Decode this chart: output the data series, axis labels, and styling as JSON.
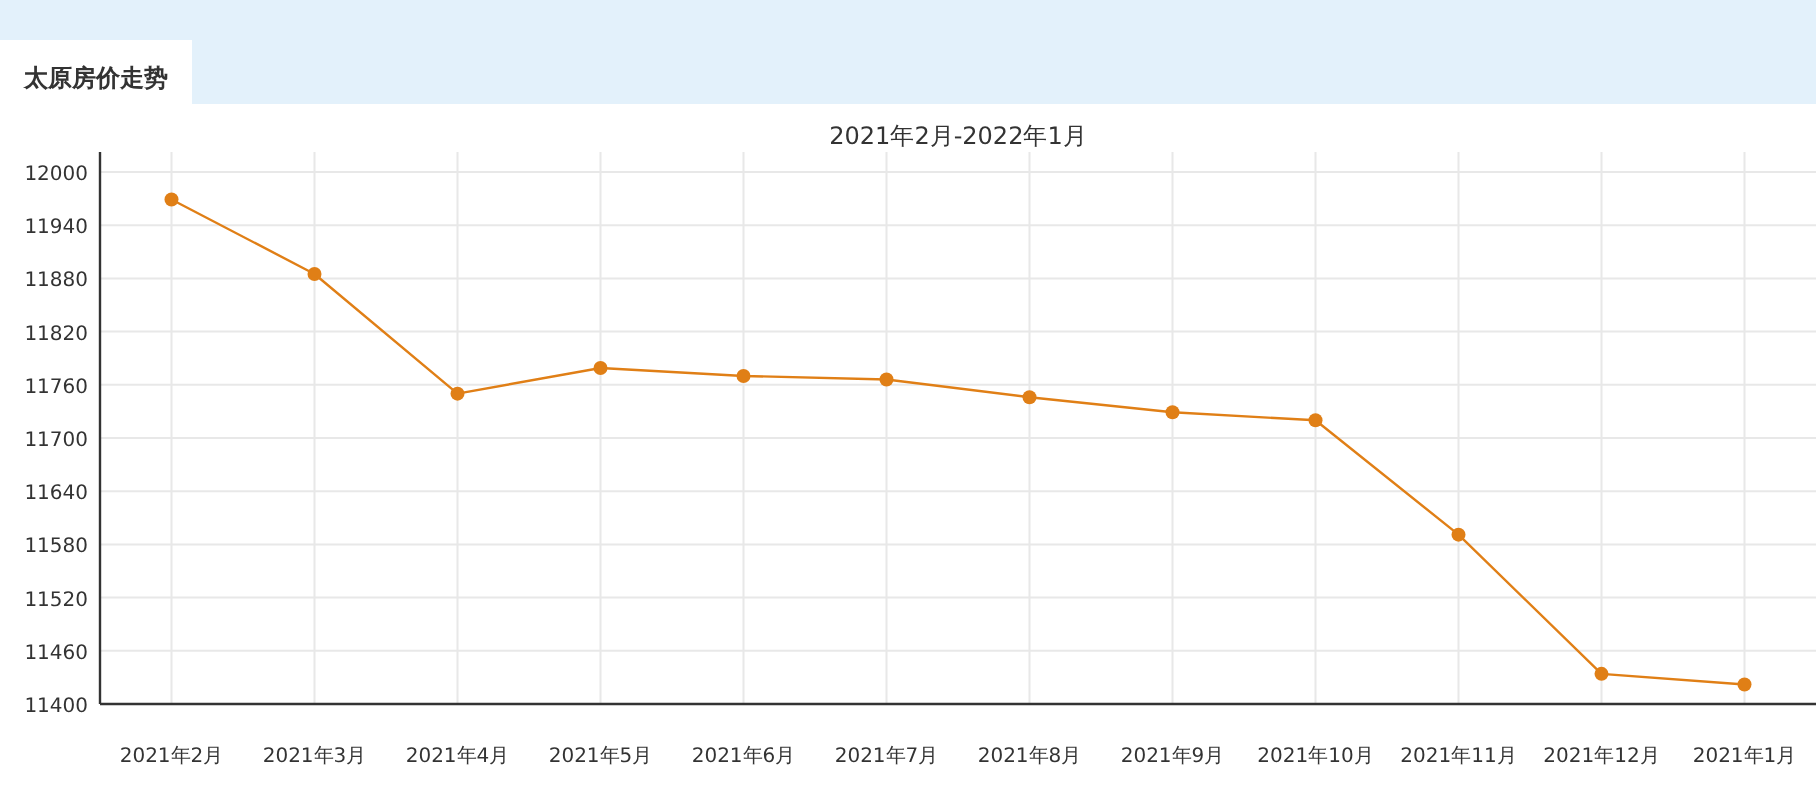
{
  "chart_data": {
    "type": "line",
    "title": "太原房价走势",
    "subtitle": "2021年2月-2022年1月",
    "categories": [
      "2021年2月",
      "2021年3月",
      "2021年4月",
      "2021年5月",
      "2021年6月",
      "2021年7月",
      "2021年8月",
      "2021年9月",
      "2021年10月",
      "2021年11月",
      "2021年12月",
      "2021年1月"
    ],
    "series": [
      {
        "color": "#e07f16",
        "values": [
          11969,
          11885,
          11750,
          11779,
          11770,
          11766,
          11746,
          11729,
          11720,
          11591,
          11434,
          11422
        ]
      }
    ],
    "ylim": [
      11400,
      12000
    ],
    "yticks": [
      11400,
      11460,
      11520,
      11580,
      11640,
      11700,
      11760,
      11820,
      11880,
      11940,
      12000
    ],
    "grid": true,
    "marker": "circle",
    "line_style": "solid"
  }
}
